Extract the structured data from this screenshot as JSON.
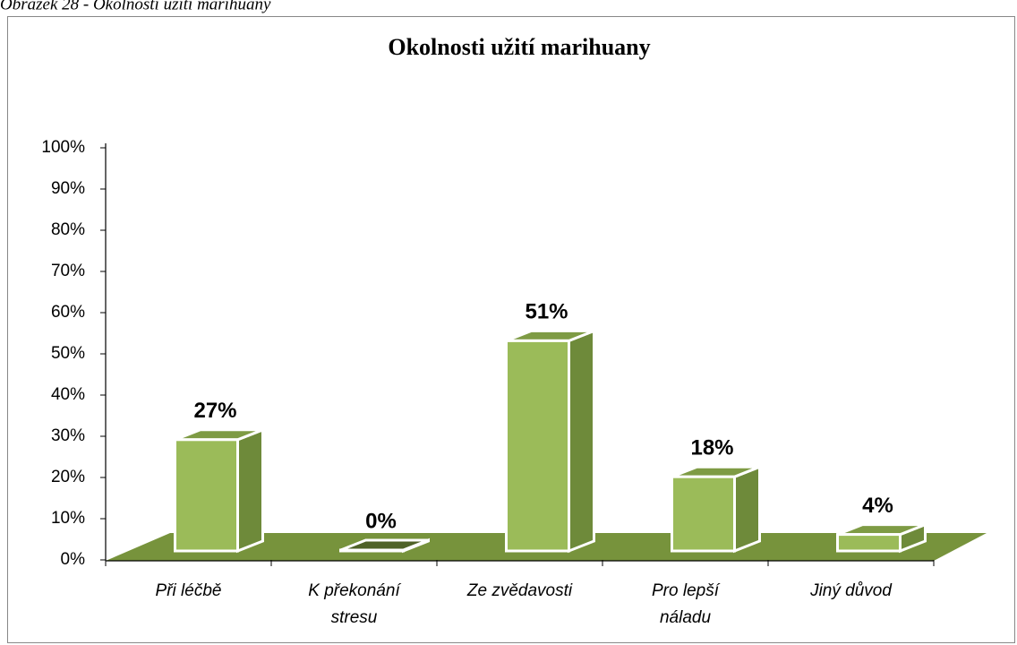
{
  "caption": "Obrázek 28 - Okolnosti užití marihuany",
  "chart_data": {
    "type": "bar",
    "title": "Okolnosti užití marihuany",
    "categories": [
      "Při léčbě",
      "K překonání stresu",
      "Ze zvědavosti",
      "Pro lepší náladu",
      "Jiný důvod"
    ],
    "values": [
      27,
      0,
      51,
      18,
      4
    ],
    "value_labels": [
      "27%",
      "0%",
      "51%",
      "18%",
      "4%"
    ],
    "color": "#9bbb59",
    "ylim": [
      0,
      100
    ],
    "yticks": [
      {
        "value": 0,
        "label": "0%"
      },
      {
        "value": 10,
        "label": "10%"
      },
      {
        "value": 20,
        "label": "20%"
      },
      {
        "value": 30,
        "label": "30%"
      },
      {
        "value": 40,
        "label": "40%"
      },
      {
        "value": 50,
        "label": "50%"
      },
      {
        "value": 60,
        "label": "60%"
      },
      {
        "value": 70,
        "label": "70%"
      },
      {
        "value": 80,
        "label": "80%"
      },
      {
        "value": 90,
        "label": "90%"
      },
      {
        "value": 100,
        "label": "100%"
      }
    ]
  }
}
